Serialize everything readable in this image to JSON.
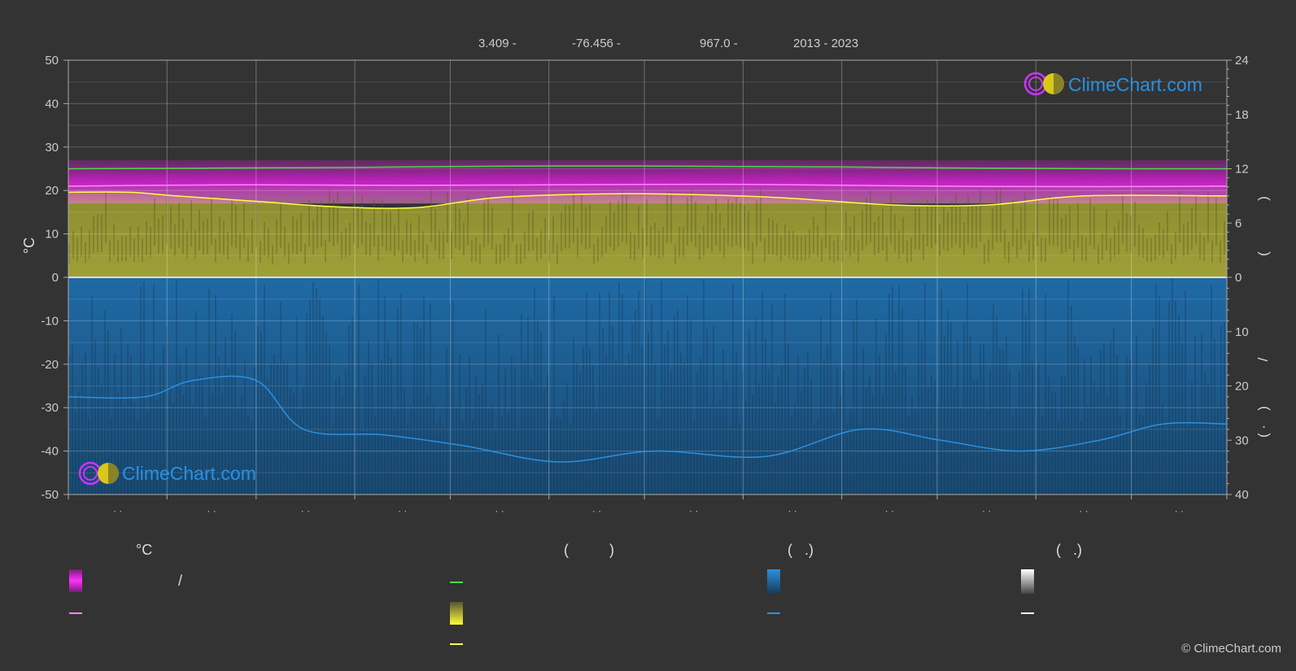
{
  "header": {
    "latitude": "3.409 -",
    "longitude": "-76.456 -",
    "elevation": "967.0 -",
    "years": "2013 - 2023"
  },
  "logo_text": "ClimeChart.com",
  "copyright": "© ClimeChart.com",
  "colors": {
    "background": "#333333",
    "temp_band": "#d21ed2",
    "sunshine_band": "#b4b43c",
    "precip_band": "#1e6eaa",
    "daylight_line": "#44dd44",
    "mean_temp_line": "#ff88ff",
    "sunshine_line": "#ffff44",
    "precip_line": "#2b90e0",
    "logo_blue": "#2b90e0"
  },
  "legend": {
    "col1": {
      "header": "°C",
      "row1_text": "/"
    },
    "col2": {
      "header": "(          )"
    },
    "col3": {
      "header": "(   .)"
    },
    "col4": {
      "header": "(   .)"
    }
  },
  "chart_data": {
    "type": "area",
    "x_tick_labels": [
      "· ·",
      "· ·",
      "· ·",
      "· ·",
      "· ·",
      "· ·",
      "· ·",
      "· ·",
      "· ·",
      "· ·",
      "· ·",
      "· ·"
    ],
    "y_left": {
      "label": "°C",
      "ticks": [
        50,
        40,
        30,
        20,
        10,
        0,
        -10,
        -20,
        -30,
        -40,
        -50
      ],
      "range": [
        -50,
        50
      ]
    },
    "y_right_top": {
      "ticks": [
        24,
        18,
        12,
        6,
        0
      ],
      "range": [
        0,
        24
      ],
      "label_fragments": [
        ")",
        "("
      ]
    },
    "y_right_bottom": {
      "ticks": [
        10,
        20,
        30,
        40
      ],
      "range": [
        0,
        40
      ],
      "label_fragments": [
        "/",
        ")",
        "( ·"
      ]
    },
    "series": [
      {
        "key": "daylight",
        "unit": "hours",
        "values": [
          12.0,
          12.05,
          12.1,
          12.15,
          12.25,
          12.3,
          12.3,
          12.25,
          12.2,
          12.1,
          12.05,
          12.0
        ],
        "day_of_year": [
          1,
          32,
          60,
          91,
          121,
          152,
          182,
          213,
          244,
          274,
          305,
          335
        ]
      },
      {
        "key": "mean_temp",
        "unit": "°C",
        "values": [
          21.0,
          21.2,
          21.3,
          21.2,
          21.2,
          21.3,
          21.4,
          21.4,
          21.2,
          21.0,
          20.9,
          20.9
        ]
      },
      {
        "key": "sunshine",
        "unit": "hours",
        "values": [
          9.4,
          9.4,
          9.0,
          8.4,
          7.8,
          7.7,
          8.8,
          9.2,
          9.2,
          8.8,
          8.0,
          8.0,
          9.0,
          9.0
        ]
      },
      {
        "key": "precipitation",
        "unit": "mm",
        "values": [
          22,
          22,
          19,
          19,
          28,
          29,
          31,
          34,
          32,
          33,
          28,
          30,
          32,
          30,
          27,
          27
        ]
      },
      {
        "key": "temp_band_range",
        "unit": "°C",
        "min": 17,
        "max": 27
      }
    ],
    "sunshine_days": [
      1,
      20,
      35,
      60,
      85,
      110,
      135,
      165,
      190,
      225,
      260,
      290,
      320,
      365
    ],
    "precip_days": [
      1,
      25,
      40,
      60,
      75,
      100,
      125,
      155,
      185,
      220,
      250,
      275,
      300,
      325,
      345,
      365
    ]
  }
}
